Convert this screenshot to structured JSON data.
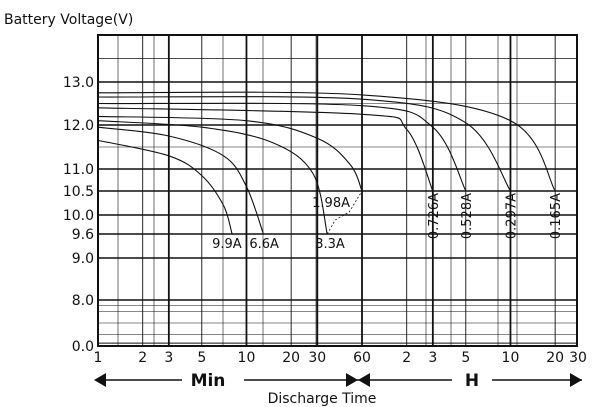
{
  "colors": {
    "background": "#ffffff",
    "axis_and_grid": "#111111",
    "curves": "#111111"
  },
  "chart_data": {
    "type": "line",
    "ylabel": "Battery Voltage(V)",
    "xlabel": "Discharge Time",
    "x_scale": "log",
    "x_unit_sections": [
      {
        "label": "Min",
        "range": [
          1,
          60
        ]
      },
      {
        "label": "H",
        "range": [
          1,
          30
        ]
      }
    ],
    "x_ticks": [
      "1",
      "2",
      "3",
      "5",
      "10",
      "20",
      "30",
      "60",
      "2",
      "3",
      "5",
      "10",
      "20",
      "30"
    ],
    "y_ticks": [
      "0.0",
      "8.0",
      "9.0",
      "9.6",
      "10.0",
      "10.5",
      "11.0",
      "12.0",
      "13.0"
    ],
    "ylim": [
      0,
      14.1
    ],
    "grid": true,
    "series": [
      {
        "name": "9.9A",
        "points": [
          [
            "1 min",
            11.65
          ],
          [
            "3 min",
            11.3
          ],
          [
            "5 min",
            10.85
          ],
          [
            "7 min",
            10.2
          ],
          [
            "8 min",
            9.6
          ]
        ]
      },
      {
        "name": "6.6A",
        "points": [
          [
            "1 min",
            11.95
          ],
          [
            "3 min",
            11.75
          ],
          [
            "7 min",
            11.3
          ],
          [
            "10 min",
            10.6
          ],
          [
            "13 min",
            9.6
          ]
        ]
      },
      {
        "name": "3.3A",
        "points": [
          [
            "1 min",
            12.1
          ],
          [
            "5 min",
            11.95
          ],
          [
            "15 min",
            11.6
          ],
          [
            "28 min",
            10.9
          ],
          [
            "35 min",
            9.6
          ]
        ]
      },
      {
        "name": "1.98A",
        "points": [
          [
            "1 min",
            12.2
          ],
          [
            "10 min",
            12.1
          ],
          [
            "30 min",
            11.7
          ],
          [
            "50 min",
            11.1
          ],
          [
            "60 min",
            10.5
          ]
        ]
      },
      {
        "name": "0.726A",
        "points": [
          [
            "1 min",
            12.4
          ],
          [
            "60 min",
            12.25
          ],
          [
            "2 h",
            11.9
          ],
          [
            "3 h",
            10.5
          ]
        ]
      },
      {
        "name": "0.528A",
        "points": [
          [
            "1 min",
            12.5
          ],
          [
            "60 min",
            12.45
          ],
          [
            "3 h",
            11.95
          ],
          [
            "5 h",
            10.5
          ]
        ]
      },
      {
        "name": "0.297A",
        "points": [
          [
            "1 min",
            12.65
          ],
          [
            "60 min",
            12.6
          ],
          [
            "5 h",
            12.05
          ],
          [
            "10 h",
            10.5
          ]
        ]
      },
      {
        "name": "0.165A",
        "points": [
          [
            "1 min",
            12.75
          ],
          [
            "60 min",
            12.7
          ],
          [
            "10 h",
            12.1
          ],
          [
            "20 h",
            10.5
          ]
        ]
      }
    ],
    "cutoff_voltages": [
      {
        "current": "9.9A",
        "voltage": 9.6
      },
      {
        "current": "6.6A",
        "voltage": 9.6
      },
      {
        "current": "3.3A",
        "voltage": 9.6
      },
      {
        "current": "1.98A",
        "voltage": 10.5
      },
      {
        "current": "0.726A",
        "voltage": 10.5
      },
      {
        "current": "0.528A",
        "voltage": 10.5
      },
      {
        "current": "0.297A",
        "voltage": 10.5
      },
      {
        "current": "0.165A",
        "voltage": 10.5
      }
    ]
  }
}
